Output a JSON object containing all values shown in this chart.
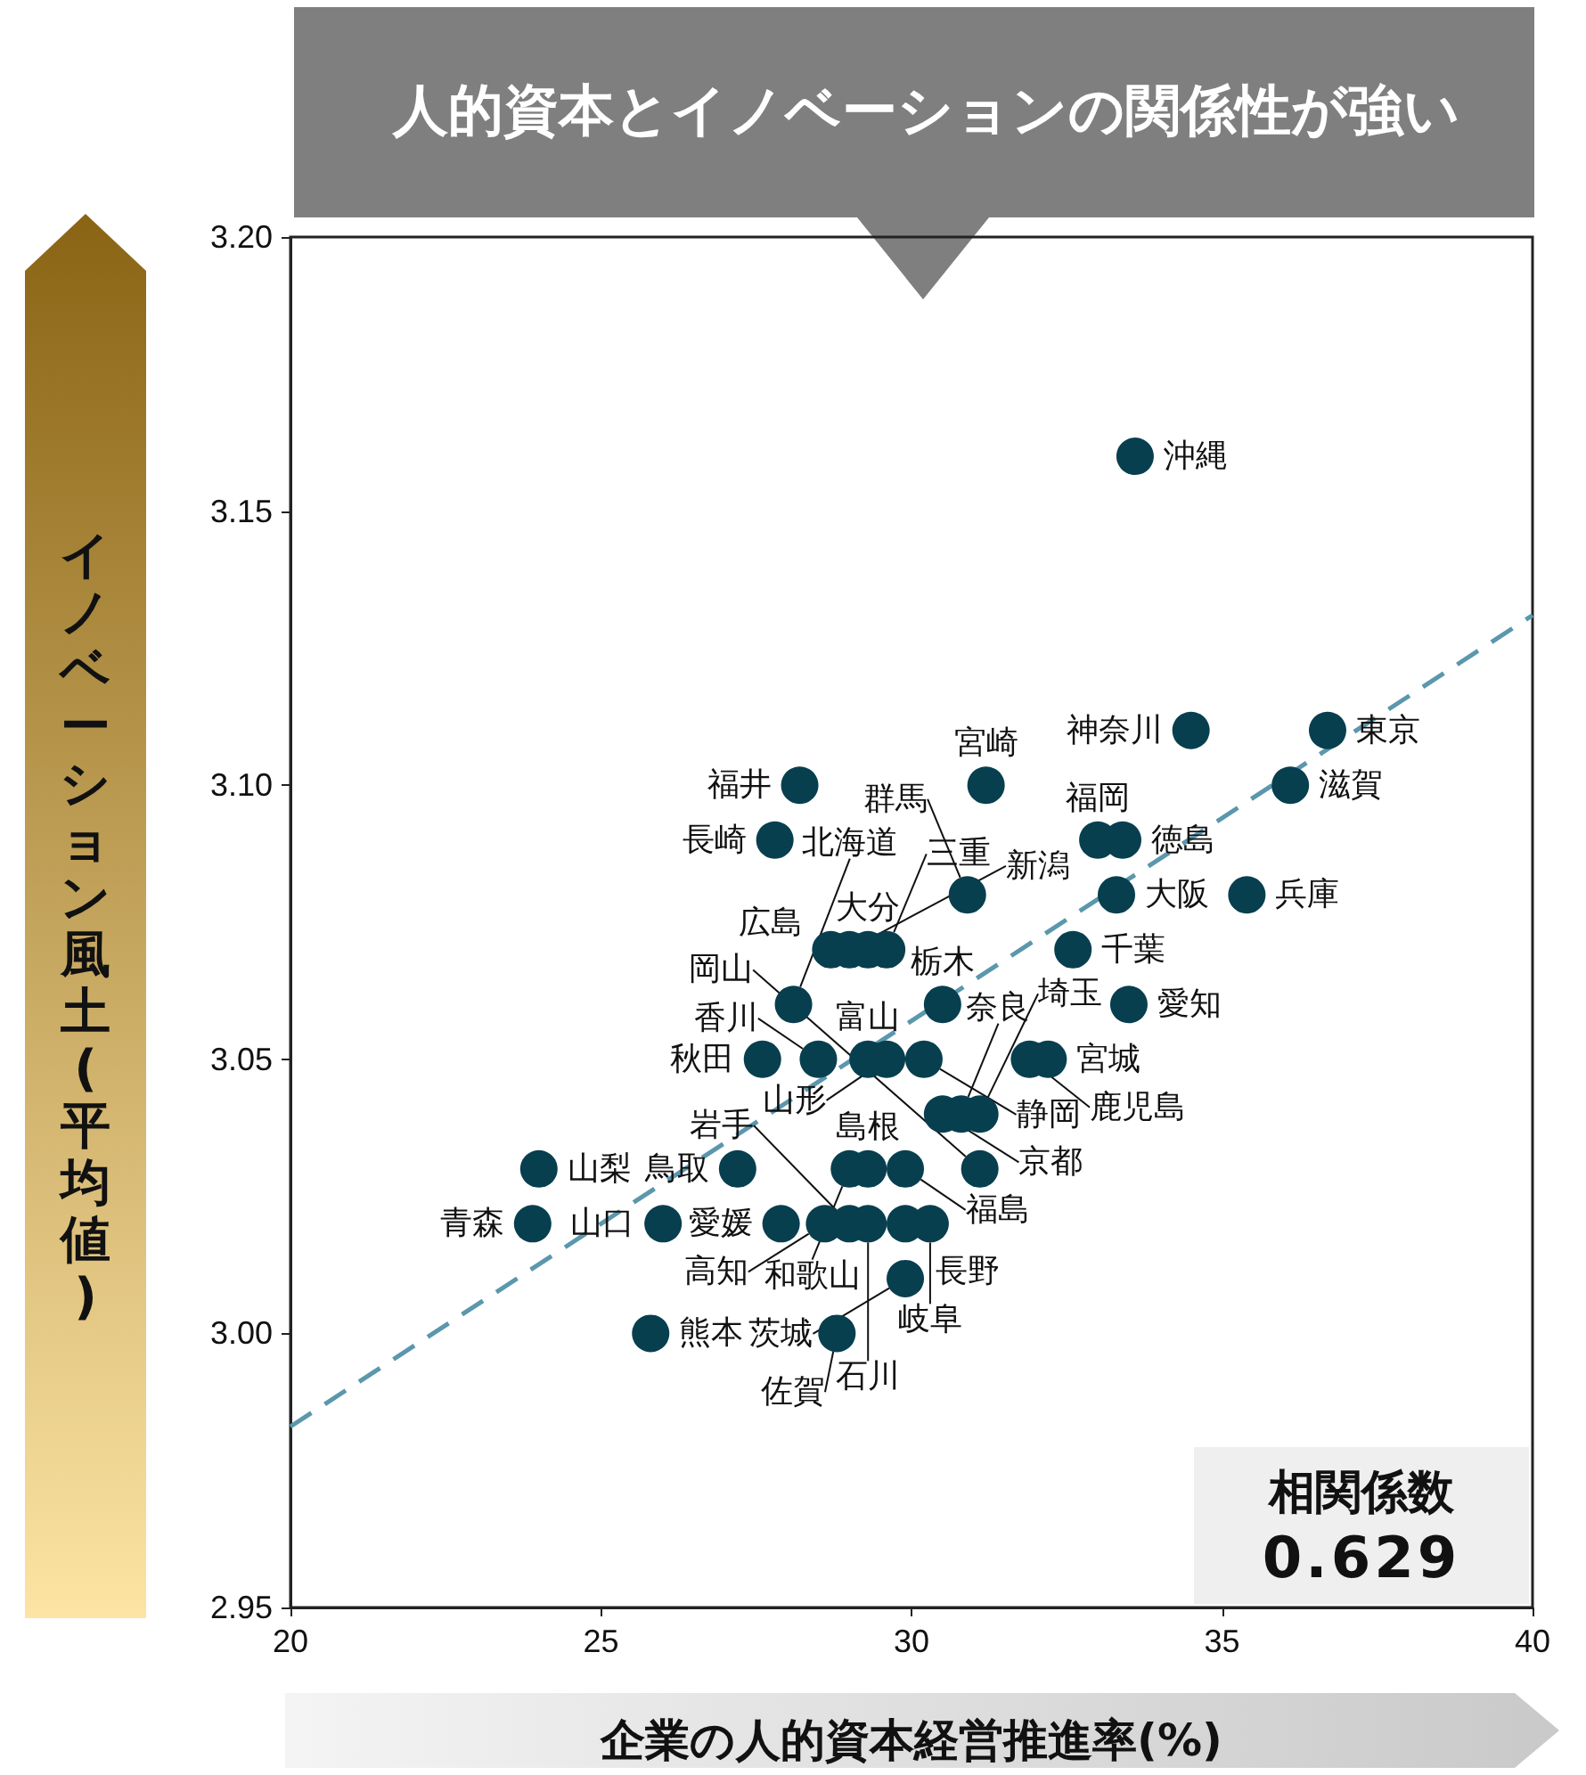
{
  "chart_data": {
    "type": "scatter",
    "title": "人的資本とイノベーションの関係性が強い",
    "xlabel": "企業の人的資本経営推進率(%)",
    "ylabel": "イノベーション風土(平均値)",
    "xlim": [
      20,
      40
    ],
    "xticks": [
      20,
      25,
      30,
      35,
      40
    ],
    "ylim": [
      2.95,
      3.2
    ],
    "yticks": [
      {
        "value": 2.95,
        "label": "2.95"
      },
      {
        "value": 3.0,
        "label": "3.00"
      },
      {
        "value": 3.05,
        "label": "3.05"
      },
      {
        "value": 3.1,
        "label": "3.10"
      },
      {
        "value": 3.15,
        "label": "3.15"
      },
      {
        "value": 3.2,
        "label": "3.20"
      }
    ],
    "marker": "circle",
    "annotations": [
      "相関係数",
      "0.629"
    ],
    "series": [
      {
        "color": "#073f4f",
        "x": [
          33.6,
          34.5,
          36.7,
          36.1,
          31.2,
          28.2,
          27.8,
          33.0,
          33.4,
          30.9,
          33.3,
          32.6,
          35.4,
          28.7,
          29.0,
          29.3,
          29.6,
          28.1,
          28.5,
          27.6,
          30.5,
          30.5,
          30.8,
          31.1,
          30.2,
          29.3,
          29.6,
          31.9,
          32.2,
          33.5,
          24.0,
          27.2,
          29.0,
          29.3,
          29.9,
          31.1,
          23.9,
          26.0,
          27.9,
          28.6,
          29.0,
          29.3,
          29.9,
          30.3,
          29.9,
          25.8,
          28.8
        ],
        "values": [
          3.16,
          3.11,
          3.11,
          3.1,
          3.1,
          3.1,
          3.09,
          3.09,
          3.09,
          3.08,
          3.08,
          3.07,
          3.08,
          3.07,
          3.07,
          3.07,
          3.07,
          3.06,
          3.05,
          3.05,
          3.06,
          3.04,
          3.04,
          3.04,
          3.05,
          3.05,
          3.05,
          3.05,
          3.05,
          3.06,
          3.03,
          3.03,
          3.03,
          3.03,
          3.03,
          3.03,
          3.02,
          3.02,
          3.02,
          3.02,
          3.02,
          3.02,
          3.02,
          3.02,
          3.01,
          3.0,
          3.0
        ],
        "value_labels": [
          "沖縄",
          "神奈川",
          "東京",
          "滋賀",
          "宮崎",
          "福井",
          "長崎",
          "福岡",
          "徳島",
          "群馬",
          "大阪",
          "千葉",
          "兵庫",
          "広島",
          "新潟",
          "大分",
          "三重",
          "北海道",
          "香川",
          "秋田",
          "栃木",
          "京都",
          "奈良",
          "埼玉",
          "静岡",
          "富山",
          "山形",
          "鹿児島",
          "宮城",
          "愛知",
          "山梨",
          "鳥取",
          "和歌山",
          "島根",
          "福島",
          "岡山",
          "青森",
          "山口",
          "愛媛",
          "高知",
          "岩手",
          "石川",
          "長野",
          "岐阜",
          "茨城",
          "熊本",
          "佐賀"
        ]
      },
      {
        "type": "line",
        "color": "#5b97ad",
        "line_style": "dashed",
        "marker": "none",
        "x": [
          20,
          40
        ],
        "values": [
          2.983,
          3.131
        ]
      }
    ]
  }
}
